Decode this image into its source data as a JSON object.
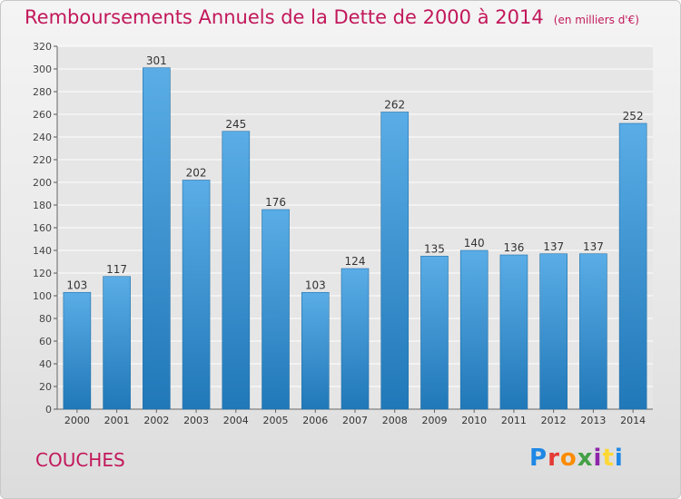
{
  "title": "Remboursements Annuels de la Dette de 2000 à 2014",
  "subtitle": "(en milliers d'€)",
  "commune": "COUCHES",
  "brand": "Proxiti",
  "colors": {
    "title": "#c2185b",
    "bar_light": "#5aade6",
    "bar_dark": "#2178b8",
    "grid": "#ffffff"
  },
  "chart_data": {
    "type": "bar",
    "title": "Remboursements Annuels de la Dette de 2000 à 2014",
    "subtitle": "(en milliers d'€)",
    "categories": [
      "2000",
      "2001",
      "2002",
      "2003",
      "2004",
      "2005",
      "2006",
      "2007",
      "2008",
      "2009",
      "2010",
      "2011",
      "2012",
      "2013",
      "2014"
    ],
    "values": [
      103,
      117,
      301,
      202,
      245,
      176,
      103,
      124,
      262,
      135,
      140,
      136,
      137,
      137,
      252
    ],
    "xlabel": "",
    "ylabel": "",
    "ylim": [
      0,
      320
    ],
    "yticks": [
      0,
      20,
      40,
      60,
      80,
      100,
      120,
      140,
      160,
      180,
      200,
      220,
      240,
      260,
      280,
      300,
      320
    ],
    "grid": true,
    "data_labels": true
  }
}
